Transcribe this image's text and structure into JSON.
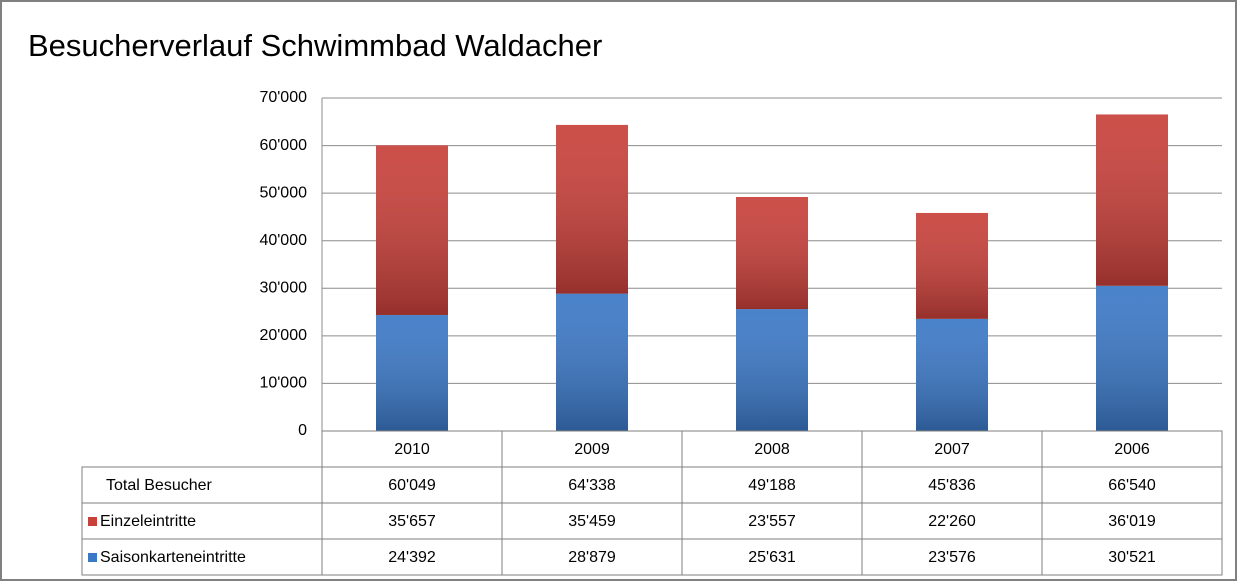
{
  "chart_data": {
    "type": "bar",
    "stacked": true,
    "title": "Besucherverlauf Schwimmbad Waldacher",
    "categories": [
      "2010",
      "2009",
      "2008",
      "2007",
      "2006"
    ],
    "total": {
      "name": "Total Besucher",
      "values": [
        60049,
        64338,
        49188,
        45836,
        66540
      ],
      "value_labels": [
        "60'049",
        "64'338",
        "49'188",
        "45'836",
        "66'540"
      ]
    },
    "series": [
      {
        "name": "Einzeleintritte",
        "color": "#c8403a",
        "values": [
          35657,
          35459,
          23557,
          22260,
          36019
        ],
        "value_labels": [
          "35'657",
          "35'459",
          "23'557",
          "22'260",
          "36'019"
        ]
      },
      {
        "name": "Saisonkarteneintritte",
        "color": "#3b78c6",
        "values": [
          24392,
          28879,
          25631,
          23576,
          30521
        ],
        "value_labels": [
          "24'392",
          "28'879",
          "25'631",
          "23'576",
          "30'521"
        ]
      }
    ],
    "ylim": [
      0,
      70000
    ],
    "yticks": [
      0,
      {
        "value": 10000,
        "label": "10'000"
      },
      {
        "value": 20000,
        "label": "20'000"
      },
      {
        "value": 30000,
        "label": "30'000"
      },
      {
        "value": 40000,
        "label": "40'000"
      },
      {
        "value": 50000,
        "label": "50'000"
      },
      {
        "value": 60000,
        "label": "60'000"
      },
      {
        "value": 70000,
        "label": "70'000"
      }
    ],
    "grid": true
  }
}
